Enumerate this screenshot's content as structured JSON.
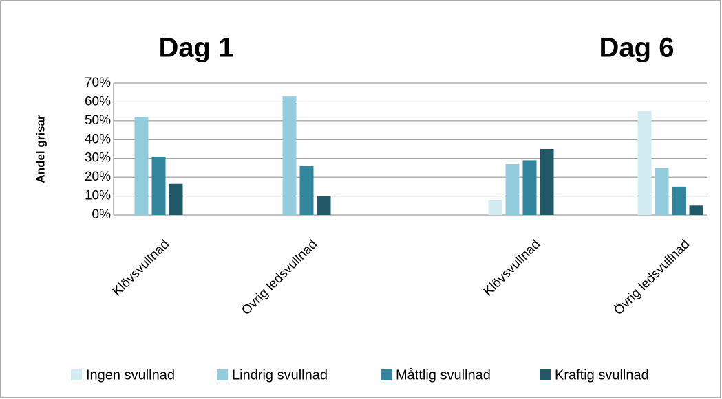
{
  "chart_data": {
    "type": "bar",
    "titles": [
      "Dag 1",
      "Dag 6"
    ],
    "y_label": "Andel grisar",
    "categories": [
      "Klövsvullnad",
      "Övrig ledsvullnad",
      "Klövsvullnad",
      "Övrig ledsvullnad"
    ],
    "series": [
      {
        "name": "Ingen svullnad",
        "color": "#d3ecf2",
        "values": [
          0,
          0,
          8,
          55
        ]
      },
      {
        "name": "Lindrig svullnad",
        "color": "#93cddd",
        "values": [
          52,
          63,
          27,
          25
        ]
      },
      {
        "name": "Måttlig svullnad",
        "color": "#31859c",
        "values": [
          31,
          26,
          29,
          15
        ]
      },
      {
        "name": "Kraftig svullnad",
        "color": "#215968",
        "values": [
          16.5,
          10,
          35,
          5
        ]
      }
    ],
    "ylim": [
      0,
      70
    ],
    "yticks": [
      {
        "value": 0,
        "label": "0%"
      },
      {
        "value": 10,
        "label": "10%"
      },
      {
        "value": 20,
        "label": "20%"
      },
      {
        "value": 30,
        "label": "30%"
      },
      {
        "value": 40,
        "label": "40%"
      },
      {
        "value": 50,
        "label": "50%"
      },
      {
        "value": 60,
        "label": "60%"
      },
      {
        "value": 70,
        "label": "70%"
      }
    ],
    "grid": true,
    "legend": "bottom"
  }
}
